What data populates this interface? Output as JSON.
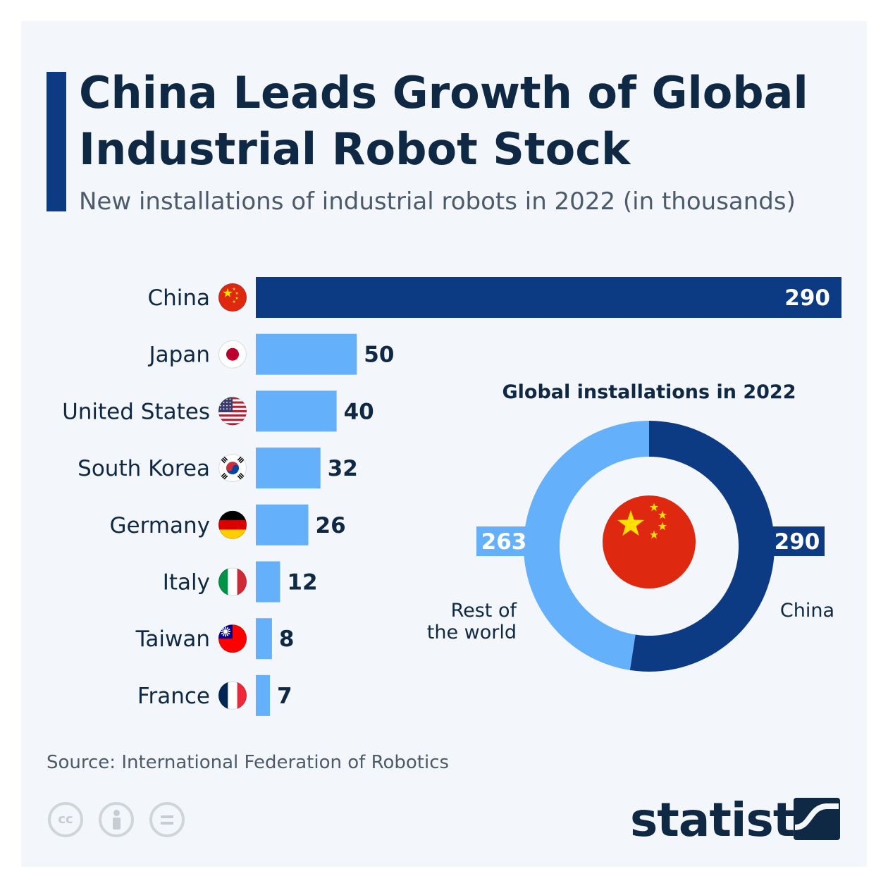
{
  "header": {
    "title": "China Leads Growth of Global Industrial Robot Stock",
    "subtitle": "New installations of industrial robots in 2022 (in thousands)"
  },
  "colors": {
    "highlight": "#0d3b83",
    "bar": "#64b0fb",
    "text_dark": "#0f2843",
    "text_muted": "#4d5a6a"
  },
  "chart_data": [
    {
      "type": "bar",
      "orientation": "horizontal",
      "unit": "thousands",
      "categories": [
        "China",
        "Japan",
        "United States",
        "South Korea",
        "Germany",
        "Italy",
        "Taiwan",
        "France"
      ],
      "values": [
        290,
        50,
        40,
        32,
        26,
        12,
        8,
        7
      ],
      "flag_icons": [
        "china-flag-icon",
        "japan-flag-icon",
        "usa-flag-icon",
        "south-korea-flag-icon",
        "germany-flag-icon",
        "italy-flag-icon",
        "taiwan-flag-icon",
        "france-flag-icon"
      ],
      "highlight_category": "China",
      "xlim": [
        0,
        290
      ],
      "grid": false
    },
    {
      "type": "pie",
      "donut": true,
      "title": "Global installations in 2022",
      "slices": [
        {
          "label": "China",
          "value": 290,
          "color": "#0d3b83"
        },
        {
          "label": "Rest of the world",
          "value": 263,
          "color": "#64b0fb"
        }
      ],
      "center_icon": "china-flag-icon"
    }
  ],
  "footer": {
    "source": "Source: International Federation of Robotics",
    "license_icons": [
      "cc-icon",
      "attribution-icon",
      "no-derivatives-icon"
    ],
    "brand": "statista"
  }
}
